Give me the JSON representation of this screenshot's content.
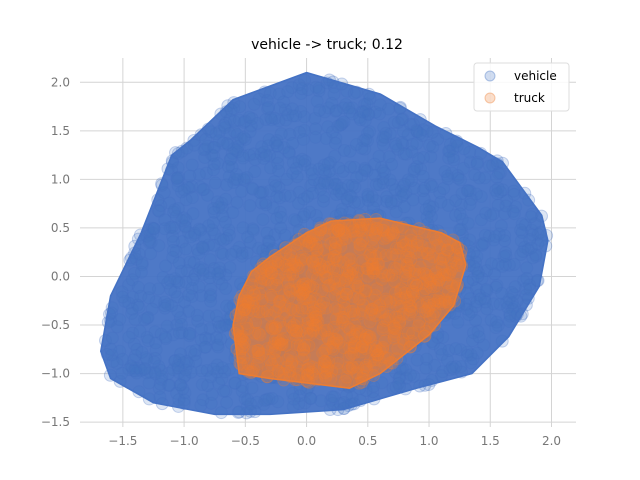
{
  "chart_data": {
    "type": "scatter",
    "title": "vehicle -> truck; 0.12",
    "xlabel": "",
    "ylabel": "",
    "xlim": [
      -1.85,
      2.2
    ],
    "ylim": [
      -1.55,
      2.25
    ],
    "xticks": [
      -1.5,
      -1.0,
      -0.5,
      0.0,
      0.5,
      1.0,
      1.5,
      2.0
    ],
    "xtick_labels": [
      "−1.5",
      "−1.0",
      "−0.5",
      "0.0",
      "0.5",
      "1.0",
      "1.5",
      "2.0"
    ],
    "yticks": [
      -1.5,
      -1.0,
      -0.5,
      0.0,
      0.5,
      1.0,
      1.5,
      2.0
    ],
    "ytick_labels": [
      "−1.5",
      "−1.0",
      "−0.5",
      "0.0",
      "0.5",
      "1.0",
      "1.5",
      "2.0"
    ],
    "grid": true,
    "legend_position": "top-right",
    "series": [
      {
        "name": "vehicle",
        "color": "#4472c4",
        "hull": [
          [
            -1.68,
            -0.77
          ],
          [
            -1.6,
            -1.05
          ],
          [
            -1.25,
            -1.3
          ],
          [
            -0.75,
            -1.42
          ],
          [
            -0.3,
            -1.42
          ],
          [
            0.3,
            -1.37
          ],
          [
            0.9,
            -1.15
          ],
          [
            1.35,
            -1.0
          ],
          [
            1.65,
            -0.62
          ],
          [
            1.9,
            -0.1
          ],
          [
            1.97,
            0.37
          ],
          [
            1.92,
            0.63
          ],
          [
            1.6,
            1.18
          ],
          [
            1.4,
            1.33
          ],
          [
            1.05,
            1.55
          ],
          [
            0.6,
            1.88
          ],
          [
            0.0,
            2.1
          ],
          [
            -0.6,
            1.82
          ],
          [
            -0.95,
            1.4
          ],
          [
            -1.1,
            1.25
          ],
          [
            -1.35,
            0.45
          ],
          [
            -1.6,
            -0.2
          ]
        ]
      },
      {
        "name": "truck",
        "color": "#ed7d31",
        "hull": [
          [
            -0.6,
            -0.5
          ],
          [
            -0.55,
            -1.0
          ],
          [
            -0.3,
            -1.05
          ],
          [
            0.35,
            -1.15
          ],
          [
            0.6,
            -1.0
          ],
          [
            1.0,
            -0.6
          ],
          [
            1.2,
            -0.3
          ],
          [
            1.3,
            0.12
          ],
          [
            1.25,
            0.35
          ],
          [
            1.1,
            0.45
          ],
          [
            0.6,
            0.6
          ],
          [
            0.2,
            0.57
          ],
          [
            0.0,
            0.45
          ],
          [
            -0.3,
            0.2
          ],
          [
            -0.45,
            0.05
          ],
          [
            -0.55,
            -0.2
          ]
        ]
      }
    ]
  }
}
